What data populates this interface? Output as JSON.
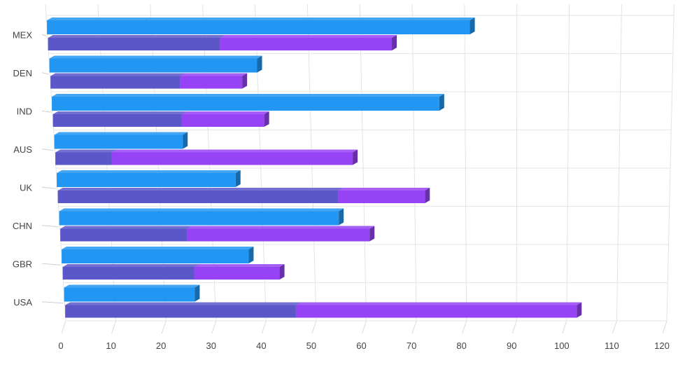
{
  "chart_data": {
    "type": "bar",
    "orientation": "horizontal",
    "style": "3d",
    "stacked_series_group": [
      "Series 2",
      "Series 3"
    ],
    "categories": [
      "USA",
      "GBR",
      "CHN",
      "UK",
      "AUS",
      "IND",
      "DEN",
      "MEX"
    ],
    "series": [
      {
        "color": "#2196F3",
        "values": [
          26,
          37,
          55,
          35,
          25,
          75,
          40,
          81
        ]
      },
      {
        "color": "#5B57C9",
        "values": [
          46,
          26,
          25,
          55,
          11,
          25,
          25,
          33
        ]
      },
      {
        "color": "#9543F5",
        "values": [
          56,
          17,
          36,
          17,
          47,
          16,
          12,
          33
        ]
      }
    ],
    "xlim": [
      0,
      120
    ],
    "x_ticks": [
      0,
      10,
      20,
      30,
      40,
      50,
      60,
      70,
      80,
      90,
      100,
      110,
      120
    ],
    "x_tick_labels": [
      "0",
      "10",
      "20",
      "30",
      "40",
      "50",
      "60",
      "70",
      "80",
      "90",
      "100",
      "110",
      "120"
    ],
    "grid": true,
    "legend": "none"
  }
}
